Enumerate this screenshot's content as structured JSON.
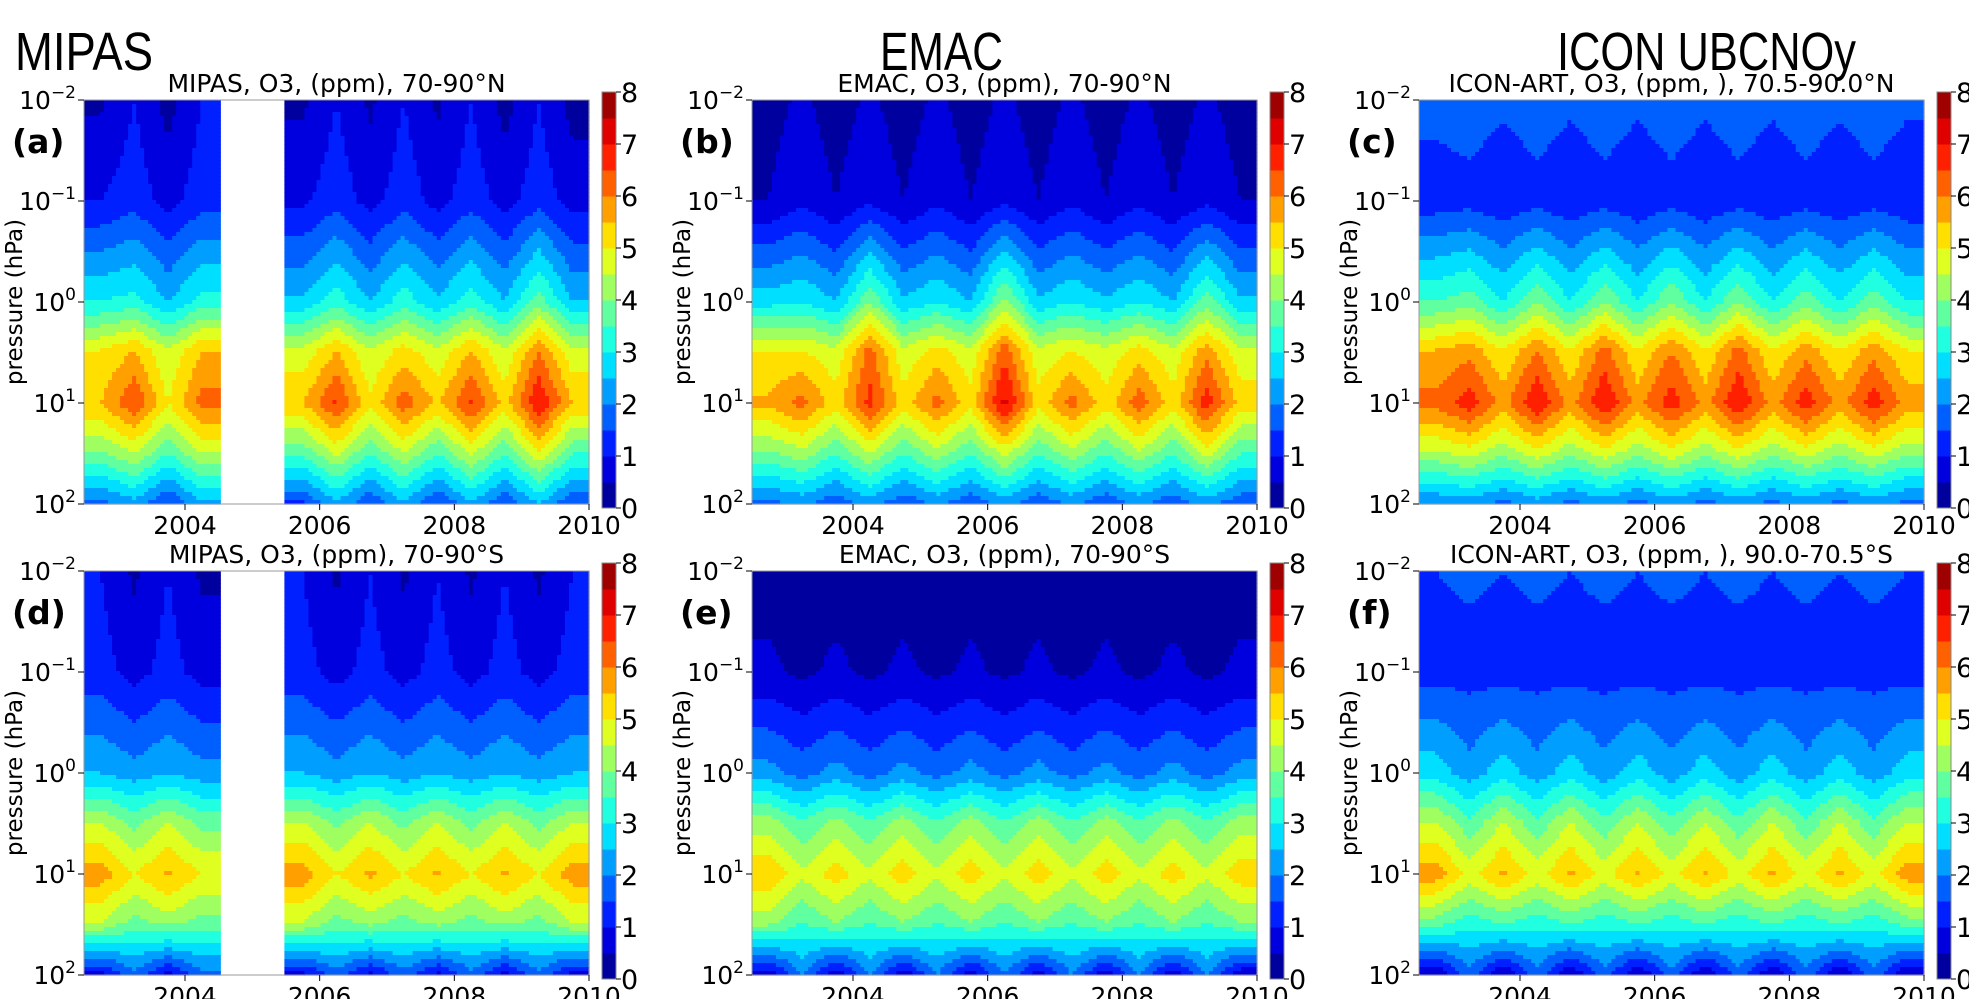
{
  "headers": [
    "MIPAS",
    "EMAC",
    "ICON UBCNOy"
  ],
  "chart_data": [
    {
      "type": "heatmap",
      "label": "(a)",
      "title": "MIPAS, O3, (ppm), 70-90°N",
      "ylabel": "pressure (hPa)",
      "yscale": "log",
      "ylim": [
        100,
        0.01
      ],
      "xlim": [
        2002.5,
        2010
      ],
      "x": [
        2002.75,
        2003.25,
        2003.75,
        2004.25,
        2004.75,
        2005.25,
        2005.75,
        2006.25,
        2006.75,
        2007.25,
        2007.75,
        2008.25,
        2008.75,
        2009.25,
        2009.75
      ],
      "y": [
        0.01,
        0.1,
        1,
        3,
        10,
        30,
        100
      ],
      "z": [
        [
          0.4,
          1.0,
          0.3,
          1.0,
          null,
          null,
          0.4,
          1.0,
          0.4,
          1.0,
          0.4,
          1.0,
          0.3,
          1.0,
          0.3
        ],
        [
          1.0,
          1.3,
          0.8,
          1.3,
          null,
          null,
          0.9,
          1.3,
          0.8,
          1.3,
          0.8,
          1.3,
          0.8,
          1.3,
          0.8
        ],
        [
          3.0,
          3.2,
          2.5,
          3.2,
          null,
          null,
          2.6,
          3.3,
          2.5,
          3.3,
          2.6,
          3.3,
          2.5,
          3.8,
          2.5
        ],
        [
          5.0,
          5.5,
          4.5,
          5.5,
          null,
          null,
          4.6,
          5.5,
          4.5,
          5.2,
          4.6,
          5.5,
          4.5,
          6.0,
          4.6
        ],
        [
          5.5,
          6.5,
          5.0,
          6.2,
          null,
          null,
          5.5,
          6.6,
          5.1,
          6.3,
          5.4,
          6.6,
          5.3,
          7.0,
          5.5
        ],
        [
          4.0,
          4.6,
          3.6,
          4.6,
          null,
          null,
          3.7,
          4.7,
          3.6,
          4.6,
          3.6,
          4.7,
          3.6,
          5.0,
          3.6
        ],
        [
          1.8,
          2.3,
          1.4,
          2.4,
          null,
          null,
          1.4,
          2.4,
          1.5,
          2.4,
          1.4,
          2.4,
          1.5,
          2.5,
          1.5
        ]
      ]
    },
    {
      "type": "heatmap",
      "label": "(b)",
      "title": "EMAC, O3, (ppm), 70-90°N",
      "ylabel": "pressure (hPa)",
      "yscale": "log",
      "ylim": [
        100,
        0.01
      ],
      "xlim": [
        2002.5,
        2010
      ],
      "x": [
        2002.75,
        2003.25,
        2003.75,
        2004.25,
        2004.75,
        2005.25,
        2005.75,
        2006.25,
        2006.75,
        2007.25,
        2007.75,
        2008.25,
        2008.75,
        2009.25,
        2009.75
      ],
      "y": [
        0.01,
        0.1,
        1,
        3,
        10,
        30,
        100
      ],
      "z": [
        [
          0.3,
          0.6,
          0.25,
          0.6,
          0.25,
          0.6,
          0.25,
          0.6,
          0.25,
          0.6,
          0.25,
          0.6,
          0.25,
          0.6,
          0.25
        ],
        [
          0.5,
          0.9,
          0.5,
          0.9,
          0.5,
          0.9,
          0.5,
          0.9,
          0.5,
          0.9,
          0.5,
          0.9,
          0.5,
          0.9,
          0.5
        ],
        [
          2.8,
          3.0,
          2.5,
          4.0,
          2.6,
          3.0,
          2.5,
          4.2,
          2.6,
          3.0,
          2.6,
          3.0,
          2.5,
          3.8,
          2.6
        ],
        [
          5.0,
          5.0,
          4.6,
          6.2,
          4.6,
          5.2,
          4.6,
          6.3,
          4.6,
          5.0,
          4.6,
          5.2,
          4.6,
          5.8,
          4.6
        ],
        [
          5.6,
          6.2,
          5.2,
          6.7,
          5.2,
          6.2,
          5.2,
          7.2,
          5.2,
          6.2,
          5.2,
          6.3,
          5.2,
          6.8,
          5.3
        ],
        [
          4.0,
          4.4,
          3.6,
          4.6,
          3.6,
          4.4,
          3.6,
          4.8,
          3.6,
          4.4,
          3.6,
          4.5,
          3.6,
          4.8,
          3.6
        ],
        [
          1.8,
          2.1,
          1.6,
          2.2,
          1.6,
          2.1,
          1.6,
          2.2,
          1.6,
          2.1,
          1.6,
          2.1,
          1.6,
          2.2,
          1.6
        ]
      ]
    },
    {
      "type": "heatmap",
      "label": "(c)",
      "title": "ICON-ART, O3, (ppm, ), 70.5-90.0°N",
      "ylabel": "pressure (hPa)",
      "yscale": "log",
      "ylim": [
        100,
        0.01
      ],
      "xlim": [
        2002.5,
        2010
      ],
      "x": [
        2002.75,
        2003.25,
        2003.75,
        2004.25,
        2004.75,
        2005.25,
        2005.75,
        2006.25,
        2006.75,
        2007.25,
        2007.75,
        2008.25,
        2008.75,
        2009.25,
        2009.75
      ],
      "y": [
        0.01,
        0.1,
        1,
        3,
        10,
        30,
        100
      ],
      "z": [
        [
          1.7,
          1.8,
          1.6,
          1.8,
          1.6,
          1.8,
          1.6,
          1.8,
          1.6,
          1.8,
          1.6,
          1.8,
          1.6,
          1.8,
          1.6
        ],
        [
          1.2,
          1.3,
          1.1,
          1.3,
          1.1,
          1.3,
          1.1,
          1.3,
          1.1,
          1.3,
          1.1,
          1.3,
          1.1,
          1.3,
          1.1
        ],
        [
          3.5,
          3.8,
          3.0,
          4.0,
          3.0,
          4.0,
          3.0,
          4.0,
          3.0,
          4.0,
          3.0,
          3.8,
          3.0,
          3.8,
          3.0
        ],
        [
          5.5,
          5.8,
          5.0,
          6.0,
          5.0,
          6.2,
          5.0,
          6.0,
          5.0,
          6.2,
          5.0,
          5.8,
          5.0,
          5.8,
          5.0
        ],
        [
          6.2,
          6.8,
          5.8,
          7.0,
          5.8,
          7.0,
          5.8,
          6.8,
          5.8,
          7.0,
          5.8,
          6.8,
          5.8,
          6.8,
          5.8
        ],
        [
          4.5,
          4.8,
          4.2,
          4.9,
          4.2,
          4.9,
          4.2,
          4.9,
          4.2,
          4.9,
          4.2,
          4.8,
          4.2,
          4.8,
          4.2
        ],
        [
          2.0,
          2.2,
          1.8,
          2.2,
          1.8,
          2.2,
          1.8,
          2.2,
          1.8,
          2.2,
          1.8,
          2.2,
          1.8,
          2.2,
          1.8
        ]
      ]
    },
    {
      "type": "heatmap",
      "label": "(d)",
      "title": "MIPAS, O3, (ppm), 70-90°S",
      "ylabel": "pressure (hPa)",
      "yscale": "log",
      "ylim": [
        100,
        0.01
      ],
      "xlim": [
        2002.5,
        2010
      ],
      "x": [
        2002.75,
        2003.25,
        2003.75,
        2004.25,
        2004.75,
        2005.25,
        2005.75,
        2006.25,
        2006.75,
        2007.25,
        2007.75,
        2008.25,
        2008.75,
        2009.25,
        2009.75
      ],
      "y": [
        0.01,
        0.1,
        1,
        3,
        10,
        30,
        100
      ],
      "z": [
        [
          1.0,
          0.4,
          1.0,
          0.4,
          null,
          null,
          1.0,
          0.4,
          1.0,
          0.4,
          1.0,
          0.4,
          1.0,
          0.4,
          1.0
        ],
        [
          1.2,
          0.8,
          1.2,
          0.8,
          null,
          null,
          1.2,
          0.8,
          1.2,
          0.8,
          1.2,
          0.8,
          1.2,
          0.8,
          1.2
        ],
        [
          2.5,
          2.2,
          2.5,
          2.2,
          null,
          null,
          2.5,
          2.2,
          2.5,
          2.2,
          2.5,
          2.2,
          2.5,
          2.2,
          2.5
        ],
        [
          4.5,
          3.8,
          4.5,
          3.8,
          null,
          null,
          4.5,
          3.8,
          4.5,
          3.8,
          4.5,
          3.8,
          4.5,
          3.8,
          4.5
        ],
        [
          5.8,
          5.0,
          5.6,
          5.0,
          null,
          null,
          5.8,
          5.0,
          5.6,
          5.0,
          5.6,
          5.0,
          5.6,
          5.0,
          5.8
        ],
        [
          4.5,
          3.8,
          4.2,
          3.8,
          null,
          null,
          4.5,
          3.8,
          4.2,
          3.8,
          4.2,
          3.8,
          4.2,
          3.8,
          4.5
        ],
        [
          0.8,
          1.8,
          0.8,
          1.8,
          null,
          null,
          0.8,
          1.8,
          0.8,
          1.8,
          0.8,
          1.8,
          0.8,
          1.8,
          0.8
        ]
      ]
    },
    {
      "type": "heatmap",
      "label": "(e)",
      "title": "EMAC, O3, (ppm), 70-90°S",
      "ylabel": "pressure (hPa)",
      "yscale": "log",
      "ylim": [
        100,
        0.01
      ],
      "xlim": [
        2002.5,
        2010
      ],
      "x": [
        2002.75,
        2003.25,
        2003.75,
        2004.25,
        2004.75,
        2005.25,
        2005.75,
        2006.25,
        2006.75,
        2007.25,
        2007.75,
        2008.25,
        2008.75,
        2009.25,
        2009.75
      ],
      "y": [
        0.01,
        0.1,
        1,
        3,
        10,
        30,
        100
      ],
      "z": [
        [
          0.3,
          0.2,
          0.3,
          0.2,
          0.3,
          0.2,
          0.3,
          0.2,
          0.3,
          0.2,
          0.3,
          0.2,
          0.3,
          0.2,
          0.3
        ],
        [
          0.6,
          0.4,
          0.6,
          0.4,
          0.6,
          0.4,
          0.6,
          0.4,
          0.6,
          0.4,
          0.6,
          0.4,
          0.6,
          0.4,
          0.6
        ],
        [
          2.2,
          1.8,
          2.2,
          1.8,
          2.2,
          1.8,
          2.2,
          1.8,
          2.2,
          1.8,
          2.2,
          1.8,
          2.2,
          1.8,
          2.2
        ],
        [
          4.2,
          3.5,
          4.2,
          3.5,
          4.2,
          3.5,
          4.2,
          3.5,
          4.2,
          3.5,
          4.2,
          3.5,
          4.2,
          3.5,
          4.2
        ],
        [
          5.5,
          4.6,
          5.3,
          4.6,
          5.3,
          4.6,
          5.3,
          4.6,
          5.3,
          4.6,
          5.3,
          4.6,
          5.3,
          4.6,
          5.3
        ],
        [
          4.2,
          3.5,
          4.0,
          3.5,
          4.0,
          3.5,
          4.0,
          3.5,
          4.0,
          3.5,
          4.0,
          3.5,
          4.0,
          3.5,
          4.0
        ],
        [
          0.6,
          2.0,
          0.6,
          2.0,
          0.6,
          2.0,
          0.6,
          2.0,
          0.6,
          2.0,
          0.6,
          2.0,
          0.6,
          2.0,
          0.6
        ]
      ]
    },
    {
      "type": "heatmap",
      "label": "(f)",
      "title": "ICON-ART, O3, (ppm, ), 90.0-70.5°S",
      "ylabel": "pressure (hPa)",
      "yscale": "log",
      "ylim": [
        100,
        0.01
      ],
      "xlim": [
        2002.5,
        2010
      ],
      "x": [
        2002.75,
        2003.25,
        2003.75,
        2004.25,
        2004.75,
        2005.25,
        2005.75,
        2006.25,
        2006.75,
        2007.25,
        2007.75,
        2008.25,
        2008.75,
        2009.25,
        2009.75
      ],
      "y": [
        0.01,
        0.1,
        1,
        3,
        10,
        30,
        100
      ],
      "z": [
        [
          1.5,
          1.6,
          1.5,
          1.6,
          1.5,
          1.6,
          1.5,
          1.6,
          1.5,
          1.6,
          1.5,
          1.6,
          1.5,
          1.6,
          1.5
        ],
        [
          1.3,
          1.3,
          1.3,
          1.3,
          1.3,
          1.3,
          1.3,
          1.3,
          1.3,
          1.3,
          1.3,
          1.3,
          1.3,
          1.3,
          1.3
        ],
        [
          2.8,
          2.2,
          2.8,
          2.2,
          2.8,
          2.2,
          2.8,
          2.2,
          2.8,
          2.2,
          2.8,
          2.2,
          2.8,
          2.2,
          2.8
        ],
        [
          4.5,
          3.6,
          4.5,
          3.6,
          4.5,
          3.6,
          4.5,
          3.6,
          4.5,
          3.6,
          4.5,
          3.6,
          4.5,
          3.6,
          4.5
        ],
        [
          5.8,
          4.8,
          5.6,
          4.8,
          5.6,
          4.8,
          5.6,
          4.8,
          5.6,
          4.8,
          5.6,
          4.8,
          5.6,
          4.8,
          5.8
        ],
        [
          3.8,
          3.2,
          3.6,
          3.2,
          3.6,
          3.2,
          3.6,
          3.2,
          3.6,
          3.2,
          3.6,
          3.2,
          3.6,
          3.2,
          3.8
        ],
        [
          0.4,
          1.8,
          0.4,
          1.8,
          0.4,
          1.8,
          0.4,
          1.8,
          0.4,
          1.8,
          0.4,
          1.8,
          0.4,
          1.8,
          0.4
        ]
      ]
    }
  ],
  "ytick_labels": [
    {
      "value": 0.01,
      "base": "10",
      "exp": "−2"
    },
    {
      "value": 0.1,
      "base": "10",
      "exp": "−1"
    },
    {
      "value": 1,
      "base": "10",
      "exp": "0"
    },
    {
      "value": 10,
      "base": "10",
      "exp": "1"
    },
    {
      "value": 100,
      "base": "10",
      "exp": "2"
    }
  ],
  "xtick_labels": [
    {
      "value": 2004,
      "text": "2004"
    },
    {
      "value": 2006,
      "text": "2006"
    },
    {
      "value": 2008,
      "text": "2008"
    },
    {
      "value": 2010,
      "text": "2010"
    }
  ],
  "colorbar": {
    "colormap": "jet",
    "range": [
      0,
      8
    ],
    "level_step": 0.5,
    "ticks": [
      "0",
      "1",
      "2",
      "3",
      "4",
      "5",
      "6",
      "7",
      "8"
    ]
  }
}
